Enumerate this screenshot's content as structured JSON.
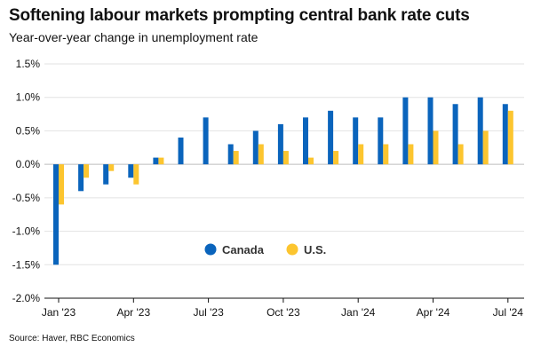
{
  "chart_data": {
    "type": "bar",
    "title": "Softening labour markets prompting central bank rate cuts",
    "subtitle": "Year-over-year change in unemployment rate",
    "source": "Source: Haver, RBC Economics",
    "categories": [
      "Jan '23",
      "Feb '23",
      "Mar '23",
      "Apr '23",
      "May '23",
      "Jun '23",
      "Jul '23",
      "Aug '23",
      "Sep '23",
      "Oct '23",
      "Nov '23",
      "Dec '23",
      "Jan '24",
      "Feb '24",
      "Mar '24",
      "Apr '24",
      "May '24",
      "Jun '24",
      "Jul '24"
    ],
    "x_tick_labels": [
      "Jan '23",
      "Apr '23",
      "Jul '23",
      "Oct '23",
      "Jan '24",
      "Apr '24",
      "Jul '24"
    ],
    "series": [
      {
        "name": "Canada",
        "color": "#0a64bc",
        "values": [
          -1.5,
          -0.4,
          -0.3,
          -0.2,
          0.1,
          0.4,
          0.7,
          0.3,
          0.5,
          0.6,
          0.7,
          0.8,
          0.7,
          0.7,
          1.0,
          1.0,
          0.9,
          1.0,
          0.9
        ]
      },
      {
        "name": "U.S.",
        "color": "#fcc52f",
        "values": [
          -0.6,
          -0.2,
          -0.1,
          -0.3,
          0.1,
          null,
          null,
          0.2,
          0.3,
          0.2,
          0.1,
          0.2,
          0.3,
          0.3,
          0.3,
          0.5,
          0.3,
          0.5,
          0.8
        ]
      }
    ],
    "y_ticks": [
      "-2.0%",
      "-1.5%",
      "-1.0%",
      "-0.5%",
      "0.0%",
      "0.5%",
      "1.0%",
      "1.5%"
    ],
    "ylim": [
      -2.0,
      1.5
    ],
    "grid": true,
    "legend_position": "center-lower"
  }
}
